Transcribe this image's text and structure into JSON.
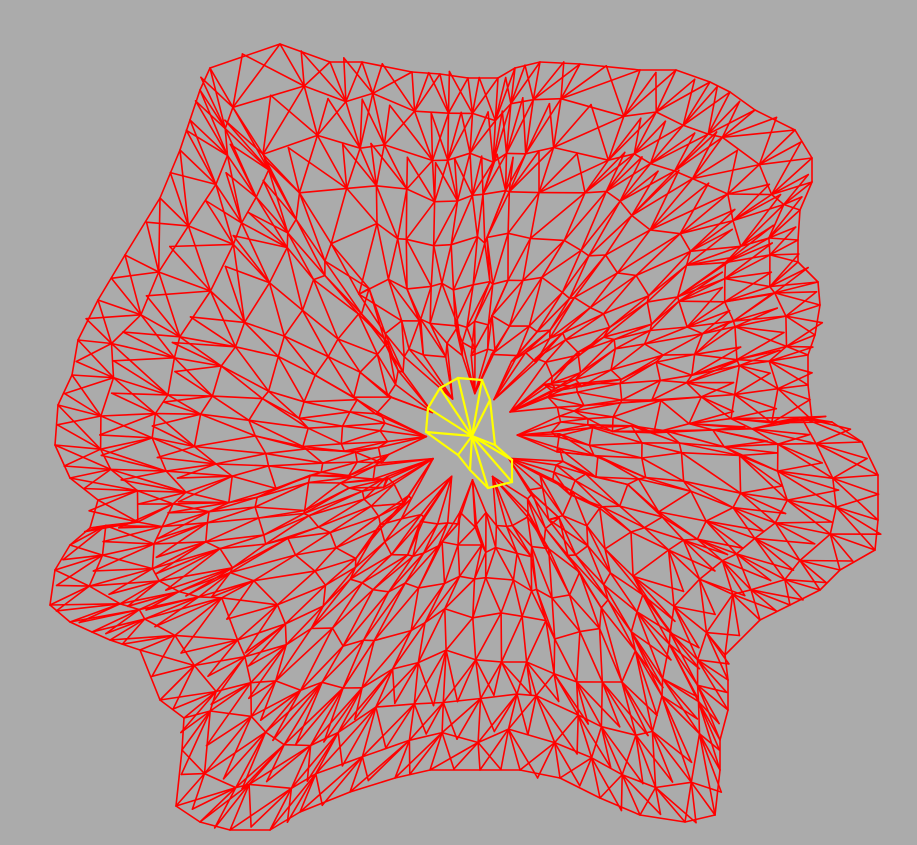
{
  "colors": {
    "background": "#ababab",
    "mesh_edge": "#ff0000",
    "highlight": "#ffff00"
  }
}
